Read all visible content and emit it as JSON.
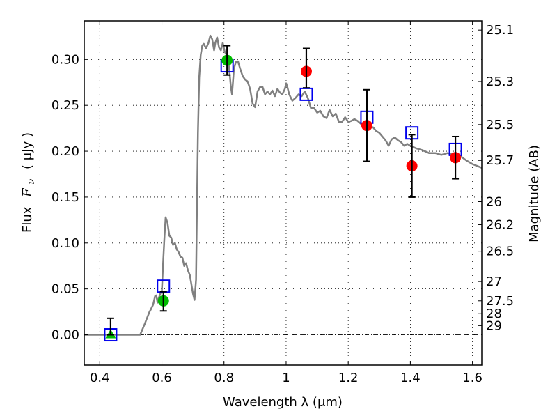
{
  "chart_data": {
    "type": "scatter",
    "title": "",
    "xlabel": "Wavelength  λ (μm)",
    "ylabel": "Flux  Fν  ( μJy )",
    "ylabel_parts": {
      "prefix": "Flux",
      "symbol": "F",
      "subscript": "ν",
      "units": "( μJy )"
    },
    "y2label": "Magnitude (AB)",
    "xlim": [
      0.35,
      1.63
    ],
    "ylim": [
      -0.033,
      0.342
    ],
    "grid": true,
    "x_ticks": [
      0.4,
      0.6,
      0.8,
      1.0,
      1.2,
      1.4,
      1.6
    ],
    "x_tick_labels": [
      "0.4",
      "0.6",
      "0.8",
      "1",
      "1.2",
      "1.4",
      "1.6"
    ],
    "y_ticks": [
      0.0,
      0.05,
      0.1,
      0.15,
      0.2,
      0.25,
      0.3
    ],
    "y_tick_labels": [
      "0.00",
      "0.05",
      "0.10",
      "0.15",
      "0.20",
      "0.25",
      "0.30"
    ],
    "y2_ticks": [
      {
        "label": "25.1",
        "flux": 0.332
      },
      {
        "label": "25.3",
        "flux": 0.276
      },
      {
        "label": "25.5",
        "flux": 0.229
      },
      {
        "label": "25.7",
        "flux": 0.19
      },
      {
        "label": "26",
        "flux": 0.145
      },
      {
        "label": "26.2",
        "flux": 0.12
      },
      {
        "label": "26.5",
        "flux": 0.091
      },
      {
        "label": "27",
        "flux": 0.058
      },
      {
        "label": "27.5",
        "flux": 0.037
      },
      {
        "label": "28",
        "flux": 0.023
      },
      {
        "label": "29",
        "flux": 0.01
      }
    ],
    "zero_line": 0.0,
    "series": [
      {
        "name": "model spectrum",
        "kind": "line",
        "color": "#808080",
        "x": [
          0.35,
          0.53,
          0.545,
          0.56,
          0.565,
          0.572,
          0.578,
          0.582,
          0.586,
          0.59,
          0.595,
          0.6,
          0.604,
          0.608,
          0.612,
          0.618,
          0.624,
          0.63,
          0.636,
          0.642,
          0.648,
          0.654,
          0.66,
          0.666,
          0.672,
          0.678,
          0.684,
          0.69,
          0.695,
          0.7,
          0.705,
          0.71,
          0.713,
          0.716,
          0.72,
          0.725,
          0.73,
          0.735,
          0.742,
          0.75,
          0.756,
          0.762,
          0.768,
          0.772,
          0.778,
          0.784,
          0.79,
          0.796,
          0.802,
          0.808,
          0.814,
          0.818,
          0.822,
          0.826,
          0.832,
          0.838,
          0.845,
          0.852,
          0.86,
          0.868,
          0.876,
          0.884,
          0.892,
          0.9,
          0.908,
          0.916,
          0.924,
          0.932,
          0.94,
          0.948,
          0.956,
          0.964,
          0.972,
          0.98,
          0.988,
          0.996,
          1.0,
          1.004,
          1.01,
          1.02,
          1.03,
          1.04,
          1.05,
          1.06,
          1.07,
          1.08,
          1.09,
          1.1,
          1.11,
          1.12,
          1.13,
          1.14,
          1.15,
          1.16,
          1.17,
          1.18,
          1.19,
          1.2,
          1.21,
          1.22,
          1.23,
          1.24,
          1.25,
          1.26,
          1.27,
          1.28,
          1.29,
          1.3,
          1.31,
          1.32,
          1.33,
          1.34,
          1.35,
          1.36,
          1.37,
          1.38,
          1.39,
          1.4,
          1.42,
          1.44,
          1.46,
          1.48,
          1.5,
          1.52,
          1.54,
          1.56,
          1.58,
          1.6,
          1.63
        ],
        "y": [
          0.0,
          0.0,
          0.012,
          0.025,
          0.028,
          0.033,
          0.042,
          0.043,
          0.035,
          0.04,
          0.045,
          0.048,
          0.078,
          0.105,
          0.128,
          0.122,
          0.108,
          0.106,
          0.098,
          0.1,
          0.093,
          0.09,
          0.085,
          0.084,
          0.075,
          0.078,
          0.07,
          0.065,
          0.055,
          0.045,
          0.038,
          0.06,
          0.14,
          0.22,
          0.28,
          0.305,
          0.315,
          0.317,
          0.312,
          0.318,
          0.326,
          0.322,
          0.31,
          0.318,
          0.324,
          0.313,
          0.31,
          0.318,
          0.309,
          0.305,
          0.3,
          0.285,
          0.27,
          0.262,
          0.29,
          0.297,
          0.298,
          0.29,
          0.282,
          0.278,
          0.276,
          0.268,
          0.252,
          0.248,
          0.265,
          0.27,
          0.27,
          0.262,
          0.265,
          0.262,
          0.266,
          0.26,
          0.268,
          0.264,
          0.262,
          0.268,
          0.274,
          0.27,
          0.262,
          0.255,
          0.258,
          0.262,
          0.26,
          0.265,
          0.258,
          0.247,
          0.247,
          0.242,
          0.244,
          0.238,
          0.236,
          0.245,
          0.238,
          0.241,
          0.232,
          0.232,
          0.237,
          0.232,
          0.233,
          0.235,
          0.233,
          0.23,
          0.228,
          0.23,
          0.227,
          0.226,
          0.222,
          0.22,
          0.216,
          0.212,
          0.206,
          0.213,
          0.215,
          0.212,
          0.21,
          0.206,
          0.208,
          0.206,
          0.203,
          0.201,
          0.198,
          0.198,
          0.196,
          0.198,
          0.196,
          0.195,
          0.19,
          0.186,
          0.182
        ]
      },
      {
        "name": "model photometry",
        "kind": "marker",
        "marker": "square-open",
        "color": "#0000ee",
        "x": [
          0.435,
          0.605,
          0.81,
          1.065,
          1.26,
          1.405,
          1.545
        ],
        "y": [
          0.0,
          0.053,
          0.293,
          0.262,
          0.237,
          0.22,
          0.202
        ]
      },
      {
        "name": "observed (green circle)",
        "kind": "marker",
        "marker": "circle",
        "color": "#00bb00",
        "x": [
          0.605,
          0.81
        ],
        "y": [
          0.037,
          0.299
        ],
        "yerr_low": [
          0.026,
          0.283
        ],
        "yerr_high": [
          0.047,
          0.315
        ]
      },
      {
        "name": "observed (green triangle)",
        "kind": "marker",
        "marker": "triangle",
        "color": "#00bb00",
        "x": [
          0.435
        ],
        "y": [
          0.0
        ],
        "yerr_low": [
          0.0
        ],
        "yerr_high": [
          0.018
        ]
      },
      {
        "name": "observed (red circle)",
        "kind": "marker",
        "marker": "circle",
        "color": "#ff0000",
        "x": [
          1.065,
          1.26,
          1.405,
          1.545
        ],
        "y": [
          0.287,
          0.228,
          0.184,
          0.193
        ],
        "yerr_low": [
          0.269,
          0.189,
          0.15,
          0.17
        ],
        "yerr_high": [
          0.312,
          0.267,
          0.218,
          0.216
        ]
      }
    ]
  }
}
